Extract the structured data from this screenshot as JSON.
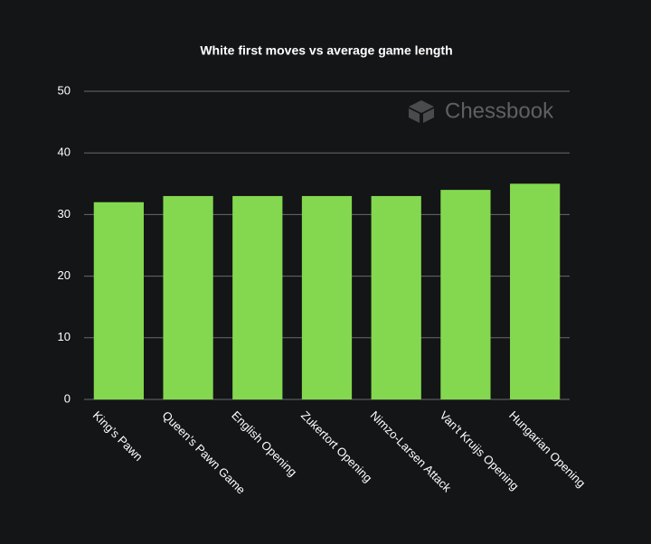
{
  "chart_data": {
    "type": "bar",
    "title": "White first moves vs average game length",
    "watermark": "Chessbook",
    "categories": [
      "King’s Pawn",
      "Queen’s Pawn Game",
      "English Opening",
      "Zukertort Opening",
      "Nimzo-Larsen Attack",
      "Van't Kruijs Opening",
      "Hungarian Opening"
    ],
    "values": [
      32,
      33,
      33,
      33,
      33,
      34,
      35
    ],
    "color": "#84d84f",
    "ylim": [
      0,
      50
    ],
    "yticks": [
      0,
      10,
      20,
      30,
      40,
      50
    ],
    "grid": true
  }
}
